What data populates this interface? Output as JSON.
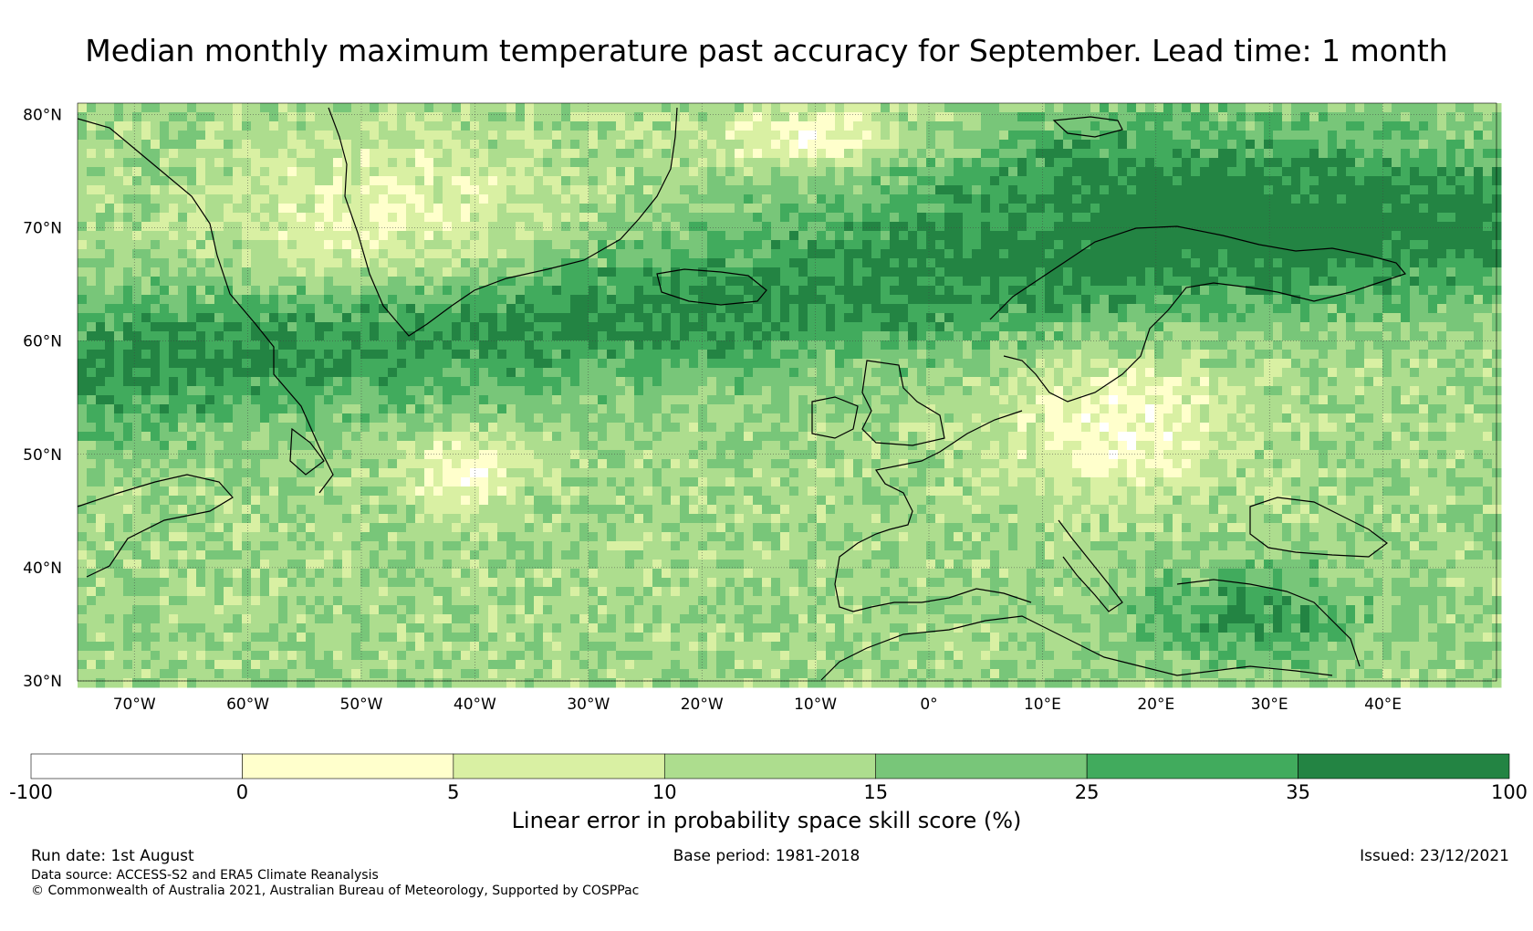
{
  "title": "Median monthly maximum temperature past accuracy for September. Lead time: 1 month",
  "map": {
    "lat_labels": [
      "80°N",
      "70°N",
      "60°N",
      "50°N",
      "40°N",
      "30°N"
    ],
    "lon_labels": [
      "70°W",
      "60°W",
      "50°W",
      "40°W",
      "30°W",
      "20°W",
      "10°W",
      "0°",
      "10°E",
      "20°E",
      "30°E",
      "40°E"
    ],
    "lat_range": [
      30,
      81
    ],
    "lon_range": [
      -75,
      50
    ]
  },
  "colorbar": {
    "ticks": [
      "-100",
      "0",
      "5",
      "10",
      "15",
      "25",
      "35",
      "100"
    ],
    "colors": [
      "#ffffff",
      "#ffffcc",
      "#d9f0a3",
      "#addd8e",
      "#78c679",
      "#41ab5d",
      "#238443"
    ],
    "label": "Linear error in probability space skill score (%)"
  },
  "footer": {
    "run_date": "Run date: 1st August",
    "base_period": "Base period: 1981-2018",
    "issued": "Issued: 23/12/2021",
    "data_source": "Data source: ACCESS-S2 and ERA5 Climate Reanalysis",
    "copyright": "© Commonwealth of Australia 2021, Australian Bureau of Meteorology, Supported by COSPPac"
  }
}
